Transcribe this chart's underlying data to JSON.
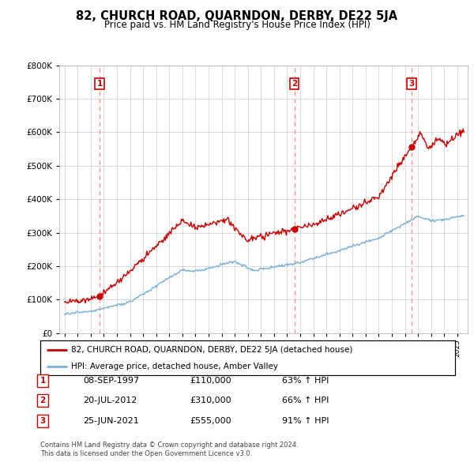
{
  "title": "82, CHURCH ROAD, QUARNDON, DERBY, DE22 5JA",
  "subtitle": "Price paid vs. HM Land Registry's House Price Index (HPI)",
  "legend_line1": "82, CHURCH ROAD, QUARNDON, DERBY, DE22 5JA (detached house)",
  "legend_line2": "HPI: Average price, detached house, Amber Valley",
  "purchases": [
    {
      "num": 1,
      "date": "08-SEP-1997",
      "price": 110000,
      "year": 1997.69,
      "pct": "63%",
      "dir": "↑"
    },
    {
      "num": 2,
      "date": "20-JUL-2012",
      "price": 310000,
      "year": 2012.55,
      "pct": "66%",
      "dir": "↑"
    },
    {
      "num": 3,
      "date": "25-JUN-2021",
      "price": 555000,
      "year": 2021.48,
      "pct": "91%",
      "dir": "↑"
    }
  ],
  "footer1": "Contains HM Land Registry data © Crown copyright and database right 2024.",
  "footer2": "This data is licensed under the Open Government Licence v3.0.",
  "red_color": "#cc0000",
  "blue_color": "#7aaed6",
  "dashed_color": "#ff8888",
  "background_color": "#ffffff",
  "grid_color": "#cccccc",
  "ylim": [
    0,
    800000
  ],
  "xlim_start": 1994.6,
  "xlim_end": 2025.8
}
